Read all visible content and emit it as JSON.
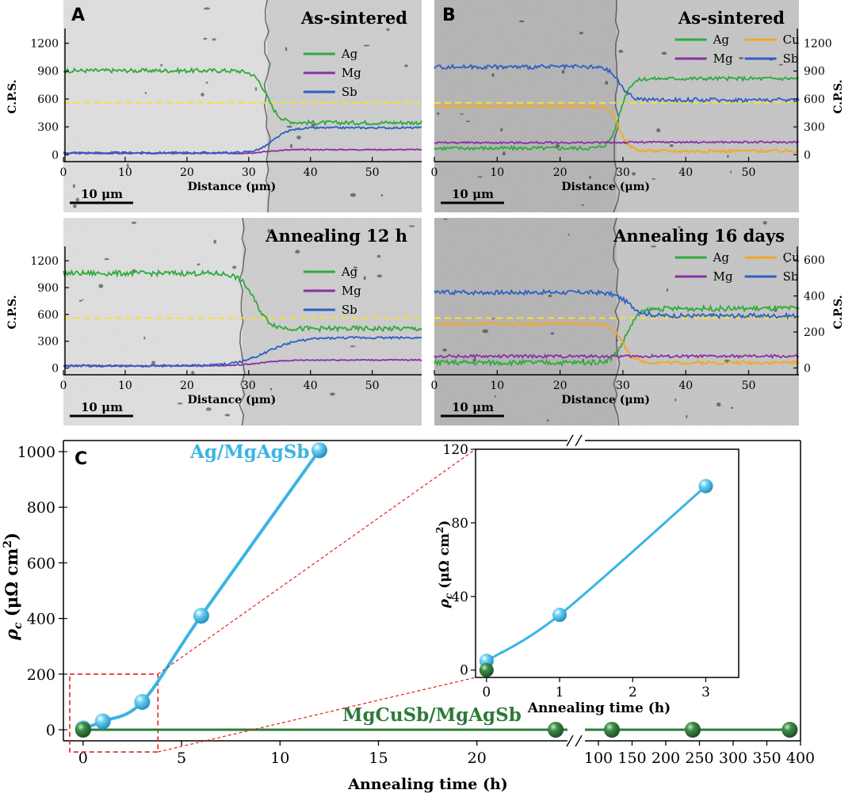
{
  "panels": [
    {
      "letter": "A",
      "title": "As-sintered",
      "xlabel": "Distance (μm)",
      "ylabel": "C.P.S.",
      "axis_side": "left",
      "xlim": [
        0,
        58
      ],
      "ylim": [
        -40,
        1290
      ],
      "xticks": [
        "0",
        "10",
        "20",
        "30",
        "40",
        "50"
      ],
      "yticks": [
        "0",
        "300",
        "600",
        "900",
        "1200"
      ],
      "scale_bar": "10 μm",
      "interface_um": 33,
      "legend": [
        "Ag",
        "Mg",
        "Sb"
      ],
      "series": [
        {
          "name": "Ag",
          "color": "#2eaa3c",
          "left": 905,
          "right": 345,
          "x0": 33,
          "w": 1.0,
          "noise": 22
        },
        {
          "name": "Mg",
          "color": "#8a2fa6",
          "left": 15,
          "right": 55,
          "x0": 33,
          "w": 1.5,
          "noise": 6
        },
        {
          "name": "Sb",
          "color": "#2f5fc2",
          "left": 22,
          "right": 290,
          "x0": 34,
          "w": 1.3,
          "noise": 10
        }
      ]
    },
    {
      "letter": "B",
      "title": "As-sintered",
      "xlabel": "Distance (μm)",
      "ylabel": "C.P.S.",
      "axis_side": "right",
      "xlim": [
        0,
        58
      ],
      "ylim": [
        -40,
        1290
      ],
      "xticks": [
        "0",
        "10",
        "20",
        "30",
        "40",
        "50"
      ],
      "yticks": [
        "0",
        "300",
        "600",
        "900",
        "1200"
      ],
      "scale_bar": "10 μm",
      "interface_um": 29,
      "legend": [
        "Ag",
        "Cu",
        "Mg",
        "Sb"
      ],
      "series": [
        {
          "name": "Ag",
          "color": "#2eaa3c",
          "left": 70,
          "right": 820,
          "x0": 29.5,
          "w": 0.8,
          "noise": 20
        },
        {
          "name": "Cu",
          "color": "#f5a623",
          "left": 520,
          "right": 40,
          "x0": 29.5,
          "w": 0.8,
          "noise": 18
        },
        {
          "name": "Mg",
          "color": "#8a2fa6",
          "left": 130,
          "right": 135,
          "x0": 29.5,
          "w": 1.0,
          "noise": 10
        },
        {
          "name": "Sb",
          "color": "#2f5fc2",
          "left": 945,
          "right": 590,
          "x0": 29.5,
          "w": 0.9,
          "noise": 22
        }
      ]
    },
    {
      "letter": "",
      "title": "Annealing 12 h",
      "xlabel": "Distance (μm)",
      "ylabel": "C.P.S.",
      "axis_side": "left",
      "xlim": [
        0,
        58
      ],
      "ylim": [
        -40,
        1290
      ],
      "xticks": [
        "0",
        "10",
        "20",
        "30",
        "40",
        "50"
      ],
      "yticks": [
        "0",
        "300",
        "600",
        "900",
        "1200"
      ],
      "scale_bar": "10 μm",
      "interface_um": 29,
      "legend": [
        "Ag",
        "Mg",
        "Sb"
      ],
      "series": [
        {
          "name": "Ag",
          "color": "#2eaa3c",
          "left": 1060,
          "right": 440,
          "x0": 31,
          "w": 1.2,
          "noise": 28
        },
        {
          "name": "Mg",
          "color": "#8a2fa6",
          "left": 25,
          "right": 90,
          "x0": 32,
          "w": 2.0,
          "noise": 6
        },
        {
          "name": "Sb",
          "color": "#2f5fc2",
          "left": 25,
          "right": 340,
          "x0": 33,
          "w": 2.5,
          "noise": 12
        }
      ]
    },
    {
      "letter": "",
      "title": "Annealing 16 days",
      "xlabel": "Distance (μm)",
      "ylabel": "C.P.S.",
      "axis_side": "right",
      "xlim": [
        0,
        58
      ],
      "ylim": [
        -20,
        640
      ],
      "xticks": [
        "0",
        "10",
        "20",
        "30",
        "40",
        "50"
      ],
      "yticks": [
        "0",
        "200",
        "400",
        "600"
      ],
      "scale_bar": "10 μm",
      "interface_um": 29,
      "legend": [
        "Ag",
        "Cu",
        "Mg",
        "Sb"
      ],
      "series": [
        {
          "name": "Ag",
          "color": "#2eaa3c",
          "left": 30,
          "right": 330,
          "x0": 30.5,
          "w": 1.0,
          "noise": 14
        },
        {
          "name": "Cu",
          "color": "#f5a623",
          "left": 245,
          "right": 30,
          "x0": 30,
          "w": 0.9,
          "noise": 10
        },
        {
          "name": "Mg",
          "color": "#8a2fa6",
          "left": 65,
          "right": 65,
          "x0": 30,
          "w": 1.0,
          "noise": 8
        },
        {
          "name": "Sb",
          "color": "#2f5fc2",
          "left": 420,
          "right": 290,
          "x0": 31,
          "w": 1.2,
          "noise": 12
        }
      ]
    }
  ],
  "chart_data": {
    "type": "line",
    "letter": "C",
    "xlabel": "Annealing time (h)",
    "ylabel": "ρc (μΩ cm2)",
    "ylim": [
      -40,
      1040
    ],
    "yticks": [
      0,
      200,
      400,
      600,
      800,
      1000
    ],
    "x_segments": [
      {
        "range": [
          -1,
          24.6
        ],
        "ticks": [
          0,
          5,
          10,
          15,
          20
        ]
      },
      {
        "range": [
          80,
          400
        ],
        "ticks": [
          100,
          150,
          200,
          250,
          300,
          350,
          400
        ]
      }
    ],
    "series": [
      {
        "name": "Ag/MgAgSb",
        "color": "#3ab5e3",
        "x": [
          0,
          1,
          3,
          6,
          12
        ],
        "y": [
          5,
          30,
          100,
          410,
          1005
        ]
      },
      {
        "name": "MgCuSb/MgAgSb",
        "color": "#2f7a3a",
        "x": [
          0,
          24,
          120,
          240,
          384
        ],
        "y": [
          0,
          0,
          0,
          0,
          0
        ]
      }
    ],
    "inset": {
      "xlabel": "Annealing time (h)",
      "ylabel": "ρc (μΩ cm2)",
      "xlim": [
        -0.15,
        3.45
      ],
      "ylim": [
        -4,
        120
      ],
      "xticks": [
        0,
        1,
        2,
        3
      ],
      "yticks": [
        0,
        40,
        80,
        120
      ]
    }
  }
}
